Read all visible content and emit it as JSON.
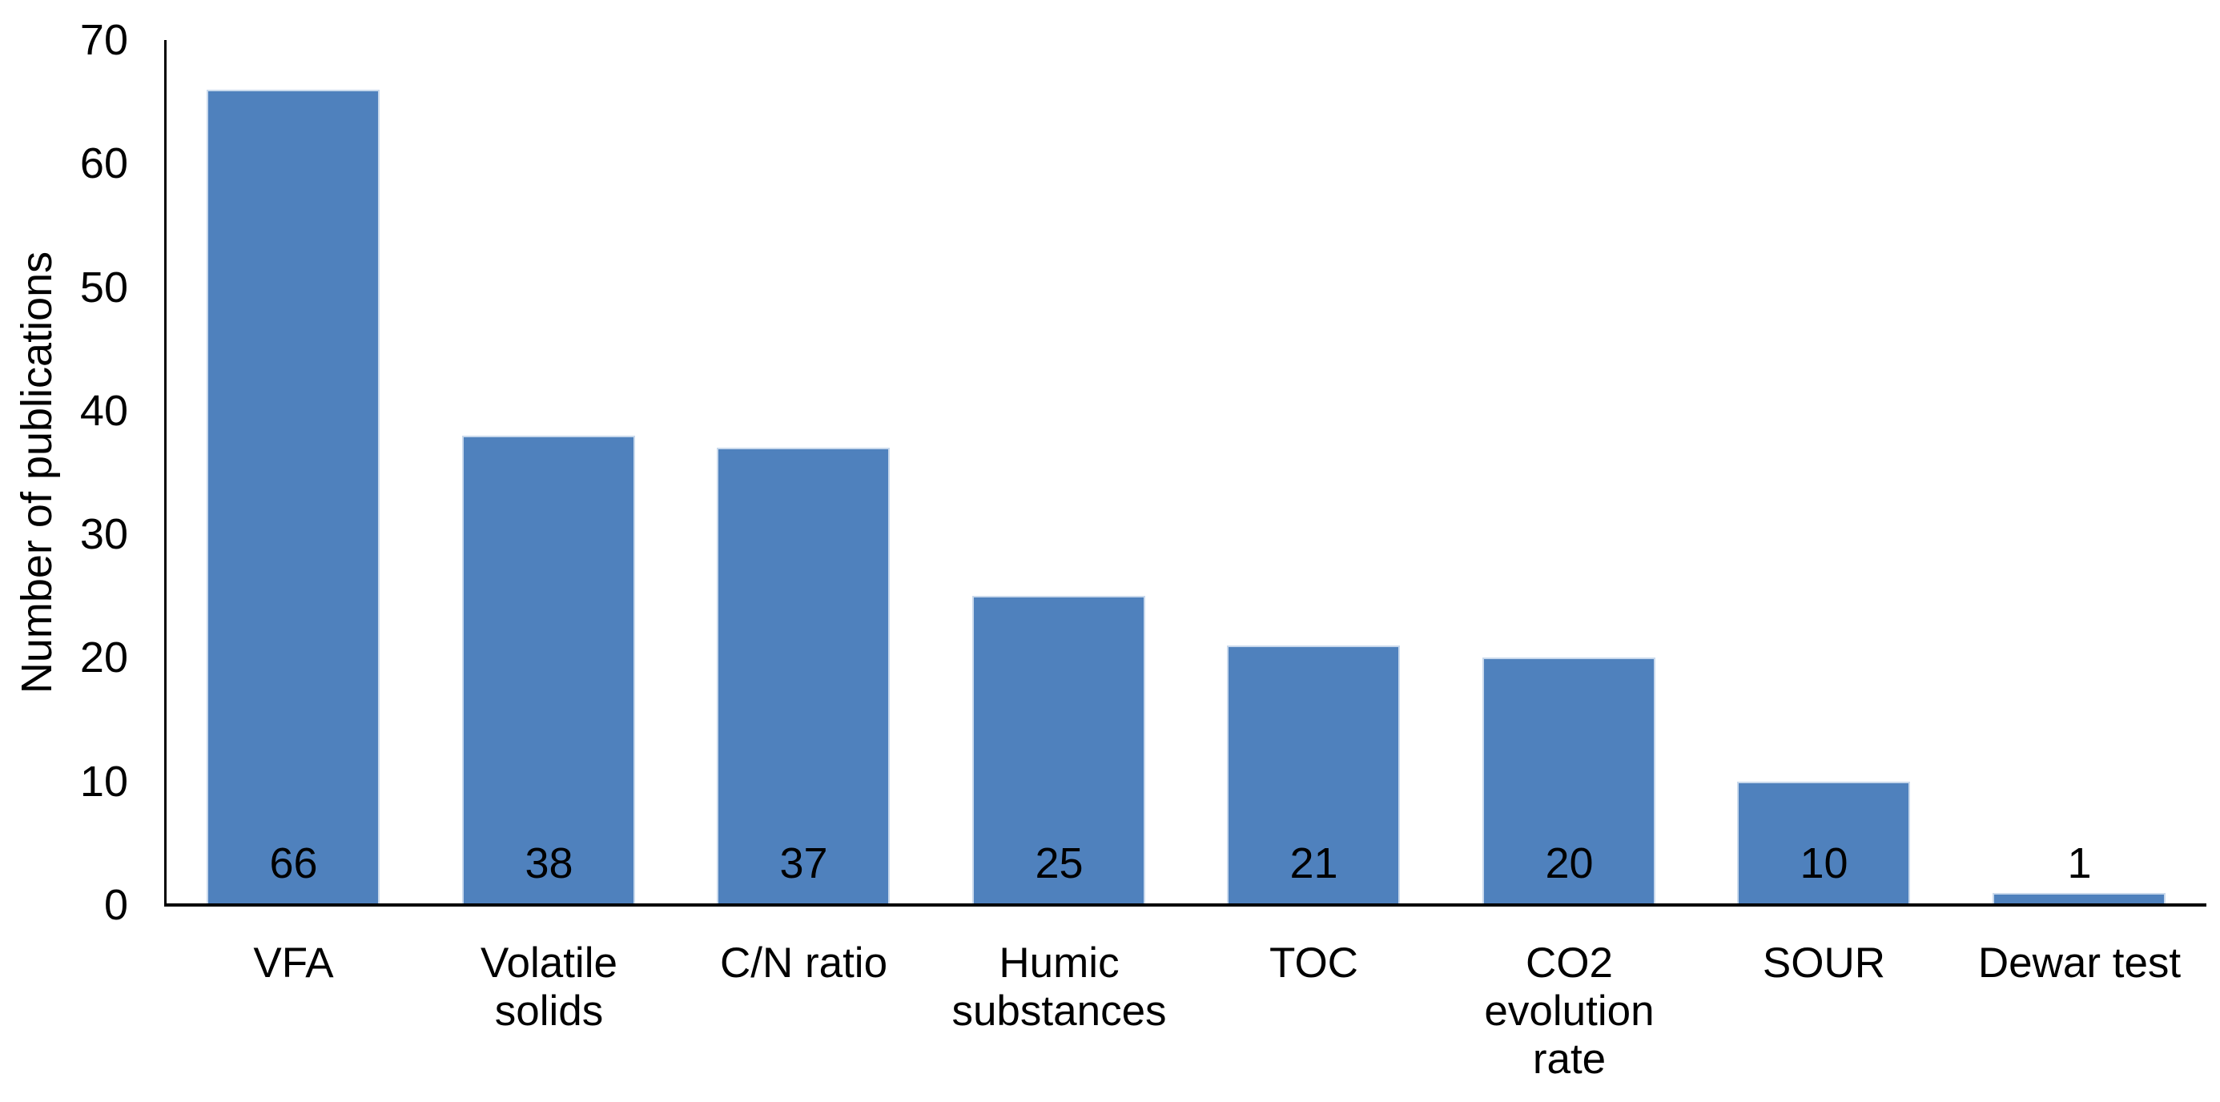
{
  "chart_data": {
    "type": "bar",
    "categories": [
      "VFA",
      "Volatile solids",
      "C/N ratio",
      "Humic substances",
      "TOC",
      "CO2 evolution rate",
      "SOUR",
      "Dewar test"
    ],
    "category_label_lines": [
      [
        "VFA"
      ],
      [
        "Volatile",
        "solids"
      ],
      [
        "C/N ratio"
      ],
      [
        "Humic",
        "substances"
      ],
      [
        "TOC"
      ],
      [
        "CO2",
        "evolution",
        "rate"
      ],
      [
        "SOUR"
      ],
      [
        "Dewar test"
      ]
    ],
    "values": [
      66,
      38,
      37,
      25,
      21,
      20,
      10,
      1
    ],
    "data_labels": [
      "66",
      "38",
      "37",
      "25",
      "21",
      "20",
      "10",
      "1"
    ],
    "title": "",
    "xlabel": "",
    "ylabel": "Number of publications",
    "ylim": [
      0,
      70
    ],
    "yticks": [
      0,
      10,
      20,
      30,
      40,
      50,
      60,
      70
    ],
    "grid": false,
    "legend": "none",
    "bar_color": "#4F81BD",
    "bar_border_color": "#C9D9EC",
    "axis_color": "#000000",
    "text_color": "#000000",
    "background_color": "#FFFFFF"
  }
}
